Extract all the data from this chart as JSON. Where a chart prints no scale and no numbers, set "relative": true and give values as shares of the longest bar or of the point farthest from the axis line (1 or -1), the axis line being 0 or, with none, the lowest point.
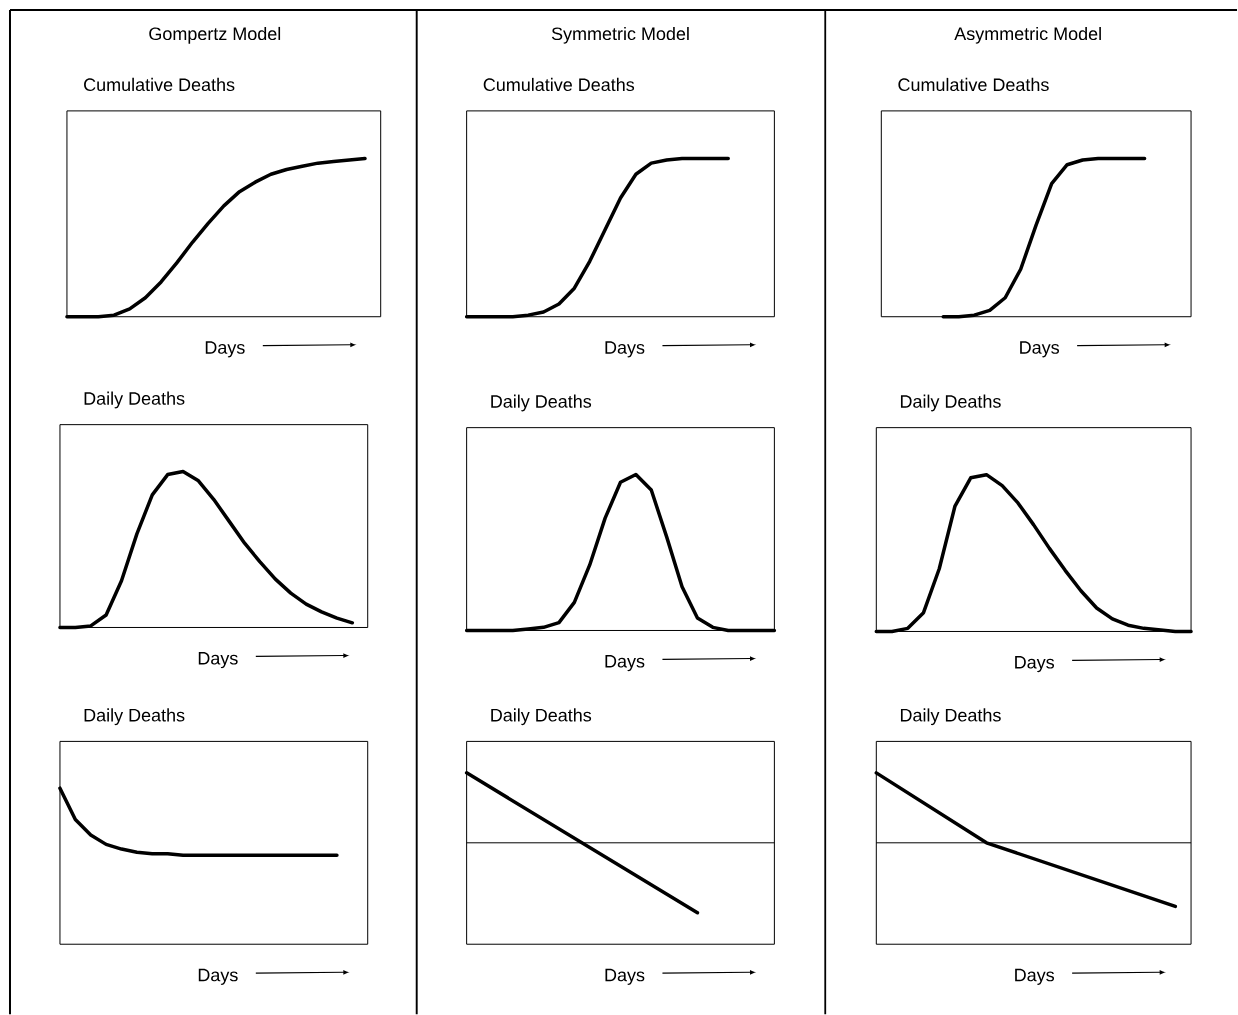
{
  "chart_data": [
    {
      "type": "line",
      "relative": true,
      "title": "Gompertz Model",
      "subtitle": "Cumulative Deaths",
      "xlabel": "Days",
      "categories": [
        null,
        null,
        null,
        null,
        null,
        null,
        null,
        null,
        null,
        null,
        null,
        null,
        null,
        null,
        null,
        null,
        null,
        null,
        null,
        null,
        null
      ],
      "series": [
        {
          "color": "#000000",
          "values": [
            0,
            0,
            0,
            0.01,
            0.05,
            0.12,
            0.22,
            0.34,
            0.47,
            0.59,
            0.7,
            0.79,
            0.85,
            0.9,
            0.93,
            0.95,
            0.97,
            0.98,
            0.99,
            1,
            null
          ]
        }
      ]
    },
    {
      "type": "line",
      "relative": true,
      "title": "Symmetric  Model",
      "subtitle": "Cumulative Deaths",
      "xlabel": "Days",
      "categories": [
        null,
        null,
        null,
        null,
        null,
        null,
        null,
        null,
        null,
        null,
        null,
        null,
        null,
        null,
        null,
        null,
        null,
        null,
        null,
        null,
        null
      ],
      "series": [
        {
          "color": "#000000",
          "values": [
            0,
            0,
            0,
            0,
            0.01,
            0.03,
            0.08,
            0.18,
            0.35,
            0.55,
            0.75,
            0.9,
            0.97,
            0.99,
            1,
            1,
            1,
            1,
            null,
            null,
            null
          ]
        }
      ]
    },
    {
      "type": "line",
      "relative": true,
      "title": "Asymmetric  Model",
      "subtitle": "Cumulative Deaths",
      "xlabel": "Days",
      "categories": [
        null,
        null,
        null,
        null,
        null,
        null,
        null,
        null,
        null,
        null,
        null,
        null,
        null,
        null,
        null,
        null,
        null,
        null,
        null,
        null,
        null
      ],
      "series": [
        {
          "color": "#000000",
          "values": [
            null,
            null,
            null,
            null,
            0,
            0,
            0.01,
            0.04,
            0.12,
            0.3,
            0.58,
            0.84,
            0.96,
            0.99,
            1,
            1,
            1,
            1,
            null,
            null,
            null
          ]
        }
      ]
    },
    {
      "type": "line",
      "relative": true,
      "title": "Daily Deaths",
      "xlabel": "Days",
      "categories": [
        null,
        null,
        null,
        null,
        null,
        null,
        null,
        null,
        null,
        null,
        null,
        null,
        null,
        null,
        null,
        null,
        null,
        null,
        null,
        null,
        null
      ],
      "series": [
        {
          "color": "#000000",
          "values": [
            0,
            0,
            0.01,
            0.08,
            0.3,
            0.6,
            0.85,
            0.98,
            1,
            0.94,
            0.82,
            0.68,
            0.54,
            0.42,
            0.31,
            0.22,
            0.15,
            0.1,
            0.06,
            0.03,
            null
          ]
        }
      ]
    },
    {
      "type": "line",
      "relative": true,
      "title": "Daily Deaths",
      "xlabel": "Days",
      "categories": [
        null,
        null,
        null,
        null,
        null,
        null,
        null,
        null,
        null,
        null,
        null,
        null,
        null,
        null,
        null,
        null,
        null,
        null,
        null,
        null,
        null
      ],
      "series": [
        {
          "color": "#000000",
          "values": [
            0,
            0,
            0,
            0,
            0.01,
            0.02,
            0.05,
            0.18,
            0.42,
            0.72,
            0.95,
            1,
            0.9,
            0.6,
            0.28,
            0.08,
            0.02,
            0,
            0,
            0,
            0
          ]
        }
      ]
    },
    {
      "type": "line",
      "relative": true,
      "title": "Daily Deaths",
      "xlabel": "Days",
      "categories": [
        null,
        null,
        null,
        null,
        null,
        null,
        null,
        null,
        null,
        null,
        null,
        null,
        null,
        null,
        null,
        null,
        null,
        null,
        null,
        null,
        null
      ],
      "series": [
        {
          "color": "#000000",
          "values": [
            0,
            0,
            0.02,
            0.12,
            0.4,
            0.8,
            0.98,
            1,
            0.93,
            0.82,
            0.68,
            0.53,
            0.39,
            0.26,
            0.15,
            0.08,
            0.04,
            0.02,
            0.01,
            0,
            0
          ]
        }
      ]
    },
    {
      "type": "line",
      "relative": true,
      "title": "Daily Deaths",
      "xlabel": "Days",
      "categories": [
        null,
        null,
        null,
        null,
        null,
        null,
        null,
        null,
        null,
        null,
        null,
        null,
        null,
        null,
        null,
        null,
        null,
        null,
        null,
        null,
        null
      ],
      "series": [
        {
          "color": "#000000",
          "values": [
            1,
            0.8,
            0.7,
            0.64,
            0.61,
            0.59,
            0.58,
            0.58,
            0.57,
            0.57,
            0.57,
            0.57,
            0.57,
            0.57,
            0.57,
            0.57,
            0.57,
            0.57,
            0.57,
            null,
            null
          ]
        }
      ]
    },
    {
      "type": "line",
      "relative": true,
      "title": "Daily Deaths",
      "xlabel": "Days",
      "categories": [
        null,
        null,
        null,
        null,
        null,
        null,
        null,
        null,
        null,
        null,
        null,
        null,
        null,
        null,
        null,
        null,
        null,
        null,
        null,
        null,
        null
      ],
      "ref_lines": [
        {
          "axis": "y",
          "value": 0
        }
      ],
      "series": [
        {
          "color": "#000000",
          "values": [
            1,
            null,
            null,
            null,
            null,
            null,
            null,
            null,
            null,
            null,
            null,
            null,
            null,
            null,
            null,
            -1,
            null,
            null,
            null,
            null,
            null
          ]
        }
      ]
    },
    {
      "type": "line",
      "relative": true,
      "title": "Daily Deaths",
      "xlabel": "Days",
      "categories": [
        null,
        null,
        null,
        null,
        null,
        null,
        null,
        null,
        null,
        null,
        null,
        null,
        null,
        null,
        null,
        null,
        null,
        null,
        null,
        null,
        null
      ],
      "ref_lines": [
        {
          "axis": "y",
          "value": 0
        }
      ],
      "series": [
        {
          "color": "#000000",
          "values": [
            1,
            null,
            null,
            null,
            null,
            null,
            null,
            0,
            null,
            null,
            null,
            null,
            null,
            null,
            null,
            null,
            null,
            null,
            null,
            -0.91,
            null
          ]
        }
      ]
    }
  ]
}
